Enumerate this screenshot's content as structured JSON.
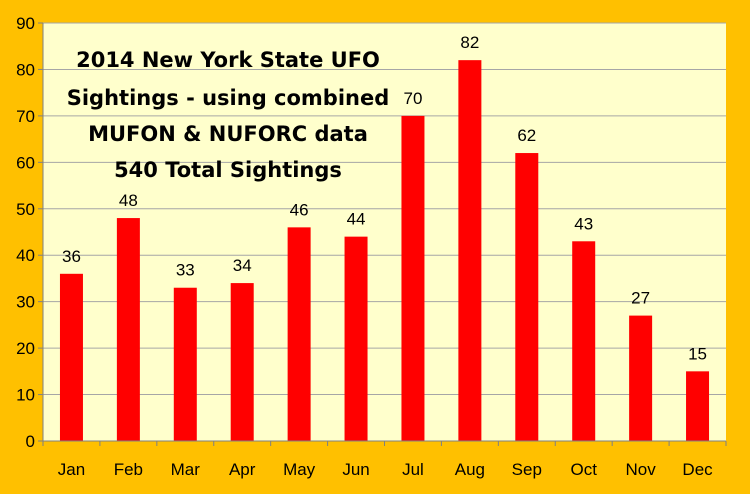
{
  "chart_data": {
    "type": "bar",
    "title_lines": [
      "2014 New York State UFO",
      "Sightings - using combined",
      "MUFON & NUFORC data",
      "540 Total Sightings"
    ],
    "categories": [
      "Jan",
      "Feb",
      "Mar",
      "Apr",
      "May",
      "Jun",
      "Jul",
      "Aug",
      "Sep",
      "Oct",
      "Nov",
      "Dec"
    ],
    "values": [
      36,
      48,
      33,
      34,
      46,
      44,
      70,
      82,
      62,
      43,
      27,
      15
    ],
    "ylim": [
      0,
      90
    ],
    "yticks": [
      0,
      10,
      20,
      30,
      40,
      50,
      60,
      70,
      80,
      90
    ],
    "grid": true,
    "data_labels": true,
    "legend": "none"
  },
  "colors": {
    "background": "#FFC000",
    "plot_area": "#FFFFCC",
    "bar": "#FF0000",
    "grid": "#A6A6A6",
    "axis": "#808080"
  }
}
